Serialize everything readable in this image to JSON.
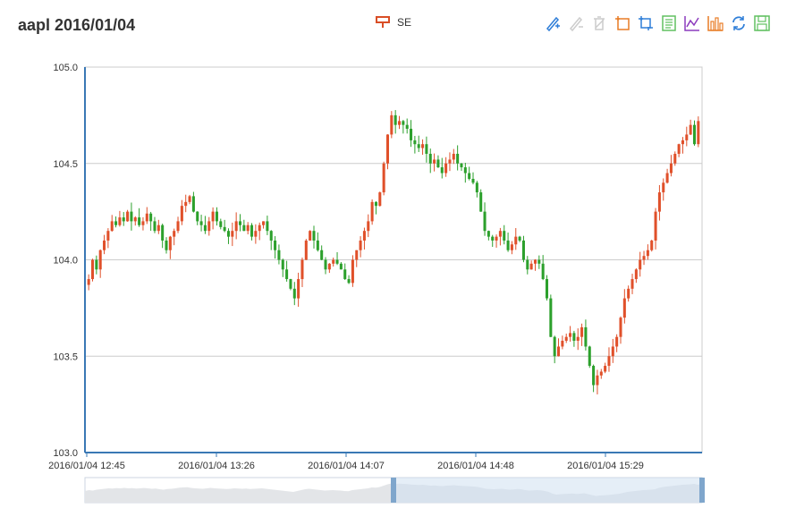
{
  "title": "aapl 2016/01/04",
  "legend": {
    "label": "SE",
    "color": "#d94e26"
  },
  "toolbox": [
    {
      "name": "mark-icon",
      "color": "#2f7ed8"
    },
    {
      "name": "mark-undo-icon",
      "color": "#cccccc"
    },
    {
      "name": "mark-clear-icon",
      "color": "#cccccc"
    },
    {
      "name": "data-zoom-icon",
      "color": "#e87c25"
    },
    {
      "name": "data-zoom-reset-icon",
      "color": "#2f7ed8"
    },
    {
      "name": "data-view-icon",
      "color": "#60c060"
    },
    {
      "name": "line-chart-icon",
      "color": "#8c3bbd"
    },
    {
      "name": "bar-chart-icon",
      "color": "#e87c25"
    },
    {
      "name": "restore-icon",
      "color": "#2f7ed8"
    },
    {
      "name": "save-image-icon",
      "color": "#60c060"
    }
  ],
  "chart_data": {
    "type": "candlestick",
    "title": "aapl 2016/01/04",
    "series_name": "SE",
    "up_color": "#e0502a",
    "down_color": "#2ca02c",
    "ylim": [
      103.0,
      105.0
    ],
    "yticks": [
      "103.0",
      "103.5",
      "104.0",
      "104.5",
      "105.0"
    ],
    "xticks": [
      "2016/01/04 12:45",
      "2016/01/04 13:26",
      "2016/01/04 14:07",
      "2016/01/04 14:48",
      "2016/01/04 15:29"
    ],
    "grid": true,
    "data_zoom": {
      "start": 0,
      "end": 50
    },
    "closes": [
      103.9,
      104.0,
      103.95,
      104.05,
      104.1,
      104.15,
      104.2,
      104.18,
      104.22,
      104.2,
      104.25,
      104.2,
      104.22,
      104.18,
      104.2,
      104.24,
      104.2,
      104.15,
      104.18,
      104.1,
      104.05,
      104.12,
      104.15,
      104.2,
      104.28,
      104.3,
      104.33,
      104.25,
      104.2,
      104.18,
      104.15,
      104.2,
      104.25,
      104.2,
      104.17,
      104.15,
      104.12,
      104.15,
      104.2,
      104.18,
      104.15,
      104.18,
      104.12,
      104.15,
      104.18,
      104.2,
      104.15,
      104.1,
      104.05,
      104.0,
      103.95,
      103.9,
      103.85,
      103.8,
      103.9,
      104.0,
      104.1,
      104.15,
      104.1,
      104.05,
      104.0,
      103.95,
      103.98,
      104.0,
      103.98,
      103.95,
      103.9,
      103.88,
      104.0,
      104.05,
      104.1,
      104.15,
      104.2,
      104.3,
      104.28,
      104.35,
      104.5,
      104.65,
      104.75,
      104.7,
      104.72,
      104.7,
      104.68,
      104.62,
      104.6,
      104.58,
      104.6,
      104.55,
      104.5,
      104.52,
      104.48,
      104.45,
      104.5,
      104.52,
      104.55,
      104.5,
      104.48,
      104.45,
      104.42,
      104.4,
      104.35,
      104.25,
      104.15,
      104.12,
      104.1,
      104.12,
      104.15,
      104.1,
      104.05,
      104.08,
      104.12,
      104.1,
      104.0,
      103.95,
      103.98,
      104.0,
      103.98,
      103.9,
      103.8,
      103.6,
      103.5,
      103.55,
      103.58,
      103.6,
      103.62,
      103.58,
      103.6,
      103.65,
      103.55,
      103.45,
      103.35,
      103.4,
      103.42,
      103.45,
      103.5,
      103.55,
      103.6,
      103.7,
      103.8,
      103.85,
      103.9,
      103.95,
      104.0,
      104.02,
      104.05,
      104.1,
      104.25,
      104.35,
      104.4,
      104.45,
      104.5,
      104.55,
      104.6,
      104.62,
      104.65,
      104.7,
      104.6,
      104.72
    ]
  }
}
